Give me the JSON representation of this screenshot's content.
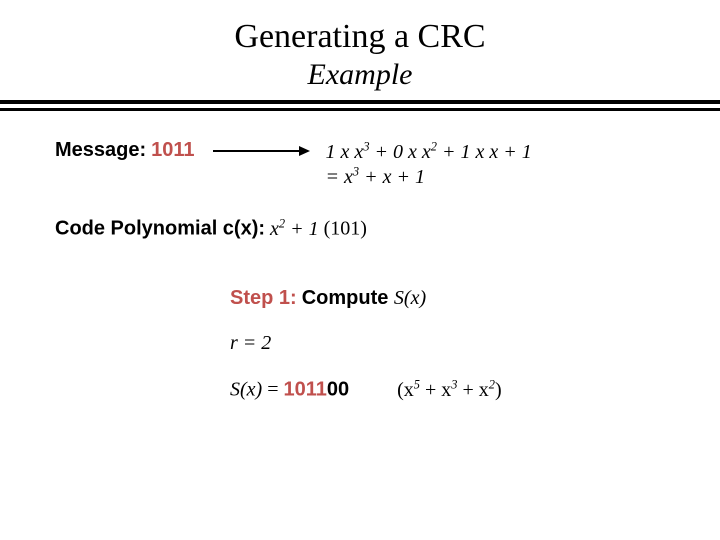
{
  "title": "Generating a CRC",
  "subtitle": "Example",
  "message": {
    "label": "Message:",
    "value": "1011"
  },
  "poly_expansion_line1_html": "1 x x<sup>3</sup> + 0  x  x<sup>2</sup> + 1 x  x + 1",
  "poly_expansion_line2_html": "= x<sup>3</sup> + x + 1",
  "code_poly": {
    "label": "Code Polynomial c(x):",
    "eq_html": "x<sup>2</sup> + 1",
    "after": "(101)"
  },
  "step1": {
    "label": "Step 1:",
    "text": "Compute",
    "sx": "S(x)"
  },
  "r_line_html": "r = 2",
  "sx_result": {
    "sx": "S(x)",
    "eq": " = ",
    "red": "1011",
    "blk": "00",
    "poly_html": "(x<sup>5</sup> + x<sup>3</sup> + x<sup>2</sup>)"
  },
  "colors": {
    "accent": "#c0504d",
    "text": "#000000",
    "bg": "#ffffff"
  }
}
